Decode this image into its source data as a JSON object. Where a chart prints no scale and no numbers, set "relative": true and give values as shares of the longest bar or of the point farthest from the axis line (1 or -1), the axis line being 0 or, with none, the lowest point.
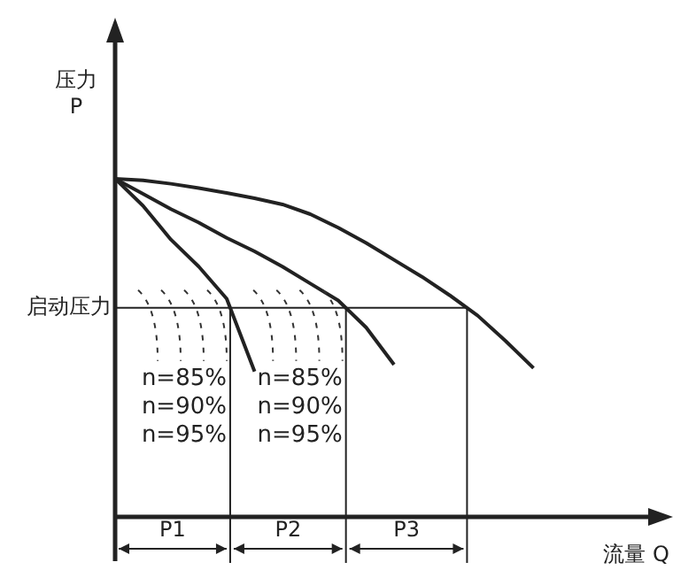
{
  "chart_data": {
    "type": "line",
    "relative": true,
    "xlabel": "流量 Q",
    "ylabel": "压力\nP",
    "legend": false,
    "marker": "none",
    "line_style": "solid",
    "categories": [
      null,
      null,
      null,
      null,
      null,
      null,
      null,
      null,
      null,
      null,
      null,
      null,
      null,
      null,
      null,
      null,
      null
    ],
    "series": [
      {
        "color": "#222222",
        "values": [
          1,
          0.92,
          0.82,
          0.74,
          0.645,
          0.43,
          null,
          null,
          null,
          null,
          null,
          null,
          null,
          null,
          null,
          null,
          null
        ]
      },
      {
        "color": "#222222",
        "values": [
          1,
          0.955,
          0.91,
          0.87,
          0.825,
          0.785,
          0.74,
          0.69,
          0.64,
          0.56,
          0.45,
          null,
          null,
          null,
          null,
          null,
          null
        ]
      },
      {
        "color": "#222222",
        "values": [
          1,
          0.995,
          0.985,
          0.972,
          0.958,
          0.942,
          0.924,
          0.895,
          0.855,
          0.81,
          0.76,
          0.71,
          0.655,
          0.595,
          0.52,
          0.44,
          null
        ]
      }
    ],
    "ref_lines": [
      {
        "axis": "y",
        "value": 0.618,
        "label": "启动压力"
      }
    ],
    "annotations": [
      "P1",
      "P2",
      "P3",
      "n=85%\nn=90%\nn=95%",
      "n=85%\nn=90%\nn=95%"
    ]
  }
}
